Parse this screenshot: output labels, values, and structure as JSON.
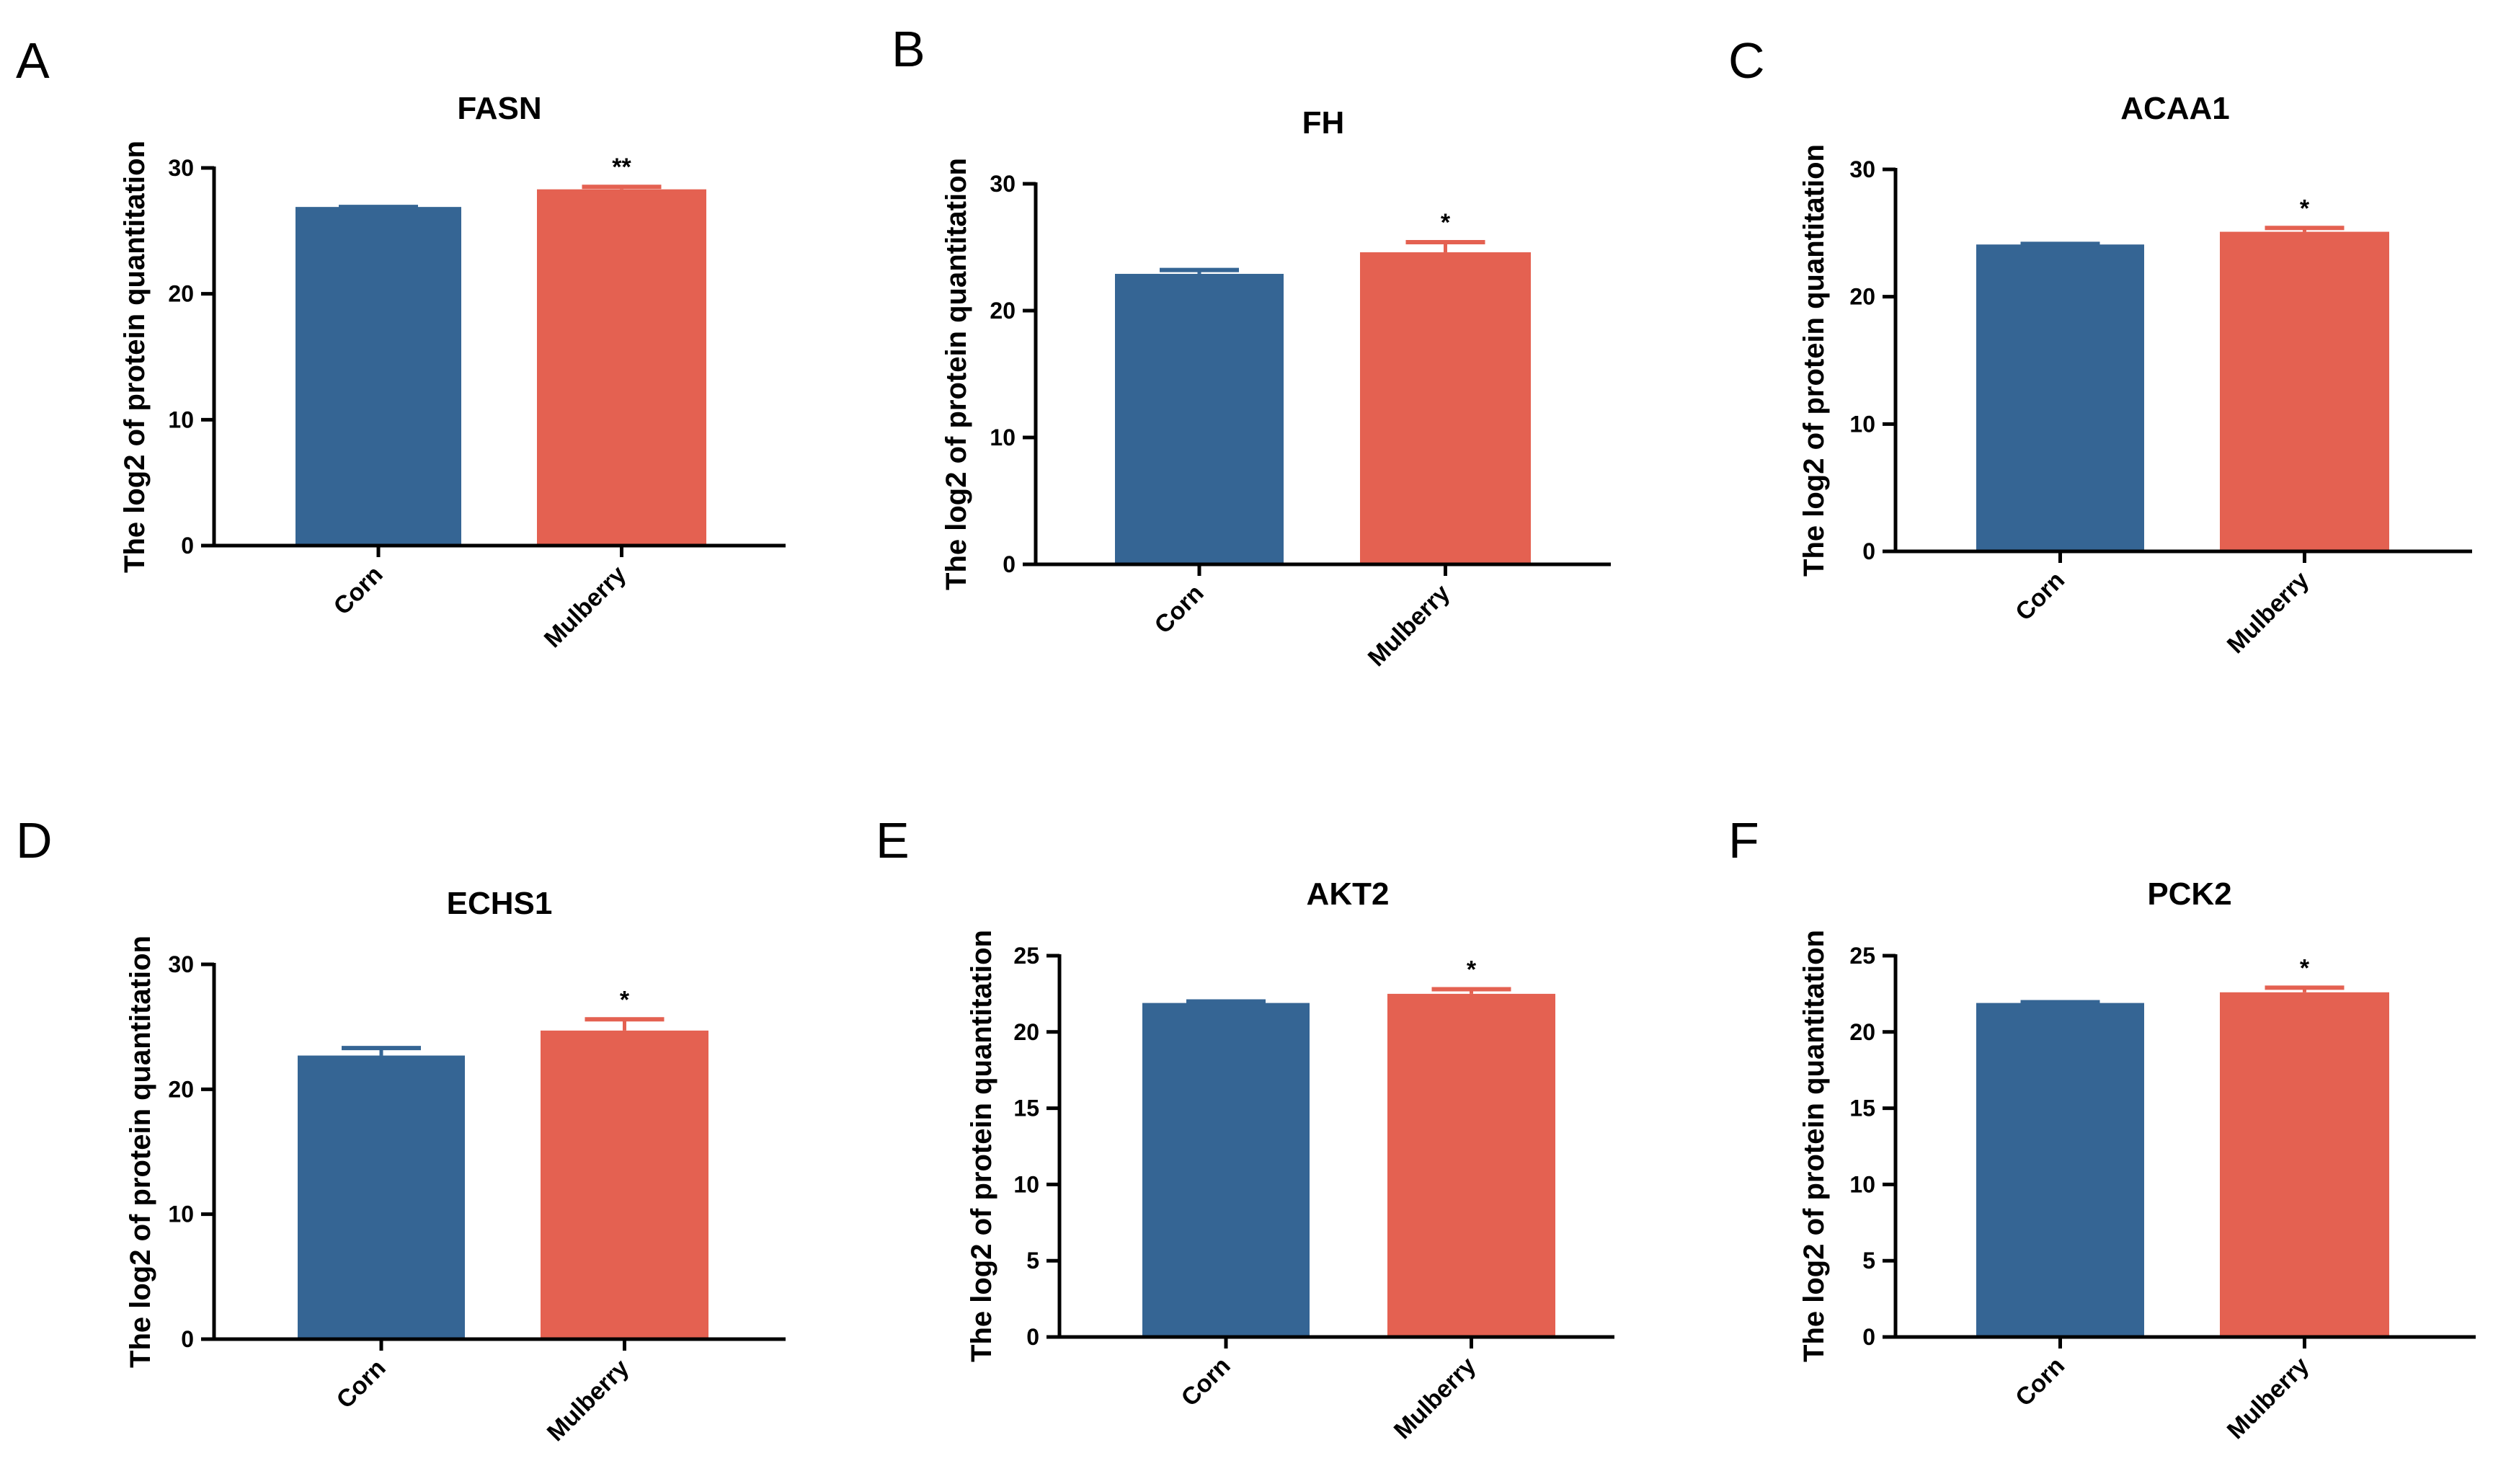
{
  "figure": {
    "colors": {
      "Corn": "#356594",
      "Mulberry": "#E46151",
      "axis": "#000000"
    }
  },
  "chart_data": [
    {
      "panel": "A",
      "type": "bar",
      "title": "FASN",
      "ylabel": "The log2 of protein quantitation",
      "categories": [
        "Corn",
        "Mulberry"
      ],
      "values": [
        26.9,
        28.3
      ],
      "errors": [
        0.0,
        0.2
      ],
      "ylim": [
        0,
        30
      ],
      "yticks": [
        0,
        10,
        20,
        30
      ],
      "significance": {
        "Mulberry": "**"
      }
    },
    {
      "panel": "B",
      "type": "bar",
      "title": "FH",
      "ylabel": "The log2 of protein quantitation",
      "categories": [
        "Corn",
        "Mulberry"
      ],
      "values": [
        22.9,
        24.6
      ],
      "errors": [
        0.3,
        0.8
      ],
      "ylim": [
        0,
        30
      ],
      "yticks": [
        0,
        10,
        20,
        30
      ],
      "significance": {
        "Mulberry": "*"
      }
    },
    {
      "panel": "C",
      "type": "bar",
      "title": "ACAA1",
      "ylabel": "The log2 of protein quantitation",
      "categories": [
        "Corn",
        "Mulberry"
      ],
      "values": [
        24.1,
        25.1
      ],
      "errors": [
        0.05,
        0.3
      ],
      "ylim": [
        0,
        30
      ],
      "yticks": [
        0,
        10,
        20,
        30
      ],
      "significance": {
        "Mulberry": "*"
      }
    },
    {
      "panel": "D",
      "type": "bar",
      "title": "ECHS1",
      "ylabel": "The log2 of protein quantitation",
      "categories": [
        "Corn",
        "Mulberry"
      ],
      "values": [
        22.7,
        24.7
      ],
      "errors": [
        0.6,
        0.9
      ],
      "ylim": [
        0,
        30
      ],
      "yticks": [
        0,
        10,
        20,
        30
      ],
      "significance": {
        "Mulberry": "*"
      }
    },
    {
      "panel": "E",
      "type": "bar",
      "title": "AKT2",
      "ylabel": "The log2 of protein quantitation",
      "categories": [
        "Corn",
        "Mulberry"
      ],
      "values": [
        21.9,
        22.5
      ],
      "errors": [
        0.1,
        0.3
      ],
      "ylim": [
        0,
        25
      ],
      "yticks": [
        0,
        5,
        10,
        15,
        20,
        25
      ],
      "significance": {
        "Mulberry": "*"
      }
    },
    {
      "panel": "F",
      "type": "bar",
      "title": "PCK2",
      "ylabel": "The log2 of protein quantitation",
      "categories": [
        "Corn",
        "Mulberry"
      ],
      "values": [
        21.9,
        22.6
      ],
      "errors": [
        0.05,
        0.3
      ],
      "ylim": [
        0,
        25
      ],
      "yticks": [
        0,
        5,
        10,
        15,
        20,
        25
      ],
      "significance": {
        "Mulberry": "*"
      }
    }
  ]
}
